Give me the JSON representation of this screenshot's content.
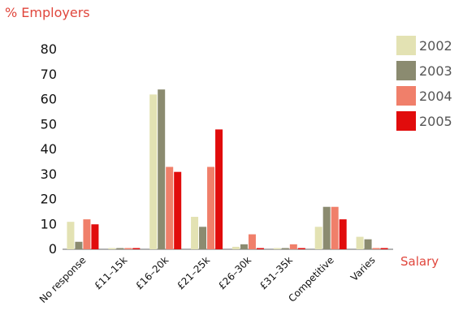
{
  "chart_data": {
    "type": "bar",
    "ylabel": "% Employers",
    "xlabel": "Salary",
    "ylim": [
      0,
      80
    ],
    "yticks": [
      0,
      10,
      20,
      30,
      40,
      50,
      60,
      70,
      80
    ],
    "grid": false,
    "legend_position": "top-right",
    "categories": [
      "No response",
      "£11–15k",
      "£16–20k",
      "£21–25k",
      "£26–30k",
      "£31–35k",
      "Competitive",
      "Varies"
    ],
    "series": [
      {
        "name": "2002",
        "color": "#e3e2b3",
        "values": [
          11,
          0,
          62,
          13,
          1,
          0,
          9,
          5
        ]
      },
      {
        "name": "2003",
        "color": "#8b8b70",
        "values": [
          3,
          0,
          64,
          9,
          2,
          0,
          17,
          4
        ]
      },
      {
        "name": "2004",
        "color": "#f07f6a",
        "values": [
          12,
          0,
          33,
          33,
          6,
          2,
          17,
          0
        ]
      },
      {
        "name": "2005",
        "color": "#e10c0c",
        "values": [
          10,
          0,
          31,
          48,
          0,
          0,
          12,
          0
        ]
      }
    ]
  }
}
